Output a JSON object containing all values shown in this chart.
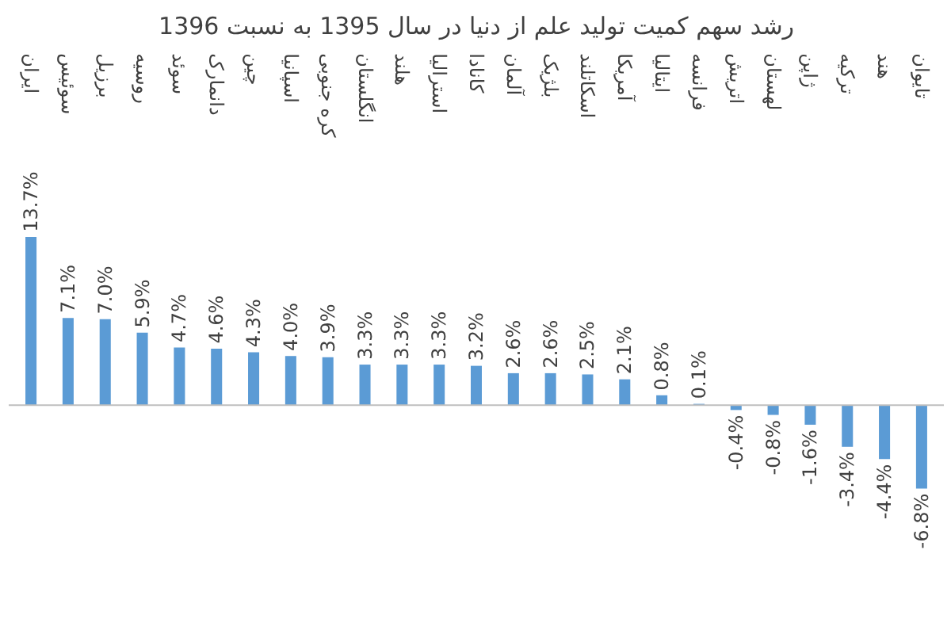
{
  "chart_data": {
    "type": "bar",
    "title": "رشد سهم کمیت تولید علم از دنیا در سال 1395 به نسبت 1396",
    "categories": [
      "ایران",
      "سوئیس",
      "برزیل",
      "روسیه",
      "سوئد",
      "دانمارک",
      "چین",
      "اسپانیا",
      "کره جنوبی",
      "انگلستان",
      "هلند",
      "استرالیا",
      "کانادا",
      "آلمان",
      "بلژیک",
      "اسکاتلند",
      "آمریکا",
      "ایتالیا",
      "فرانسه",
      "اتریش",
      "لهستان",
      "ژاپن",
      "ترکیه",
      "هند",
      "تایوان"
    ],
    "values": [
      13.7,
      7.1,
      7.0,
      5.9,
      4.7,
      4.6,
      4.3,
      4.0,
      3.9,
      3.3,
      3.3,
      3.3,
      3.2,
      2.6,
      2.6,
      2.5,
      2.1,
      0.8,
      0.1,
      -0.4,
      -0.8,
      -1.6,
      -3.4,
      -4.4,
      -6.8
    ],
    "value_labels": [
      "13.7%",
      "7.1%",
      "7.0%",
      "5.9%",
      "4.7%",
      "4.6%",
      "4.3%",
      "4.0%",
      "3.9%",
      "3.3%",
      "3.3%",
      "3.3%",
      "3.2%",
      "2.6%",
      "2.6%",
      "2.5%",
      "2.1%",
      "0.8%",
      "0.1%",
      "-0.4%",
      "-0.8%",
      "-1.6%",
      "-3.4%",
      "-4.4%",
      "-6.8%"
    ],
    "color": "#5b9bd5"
  }
}
